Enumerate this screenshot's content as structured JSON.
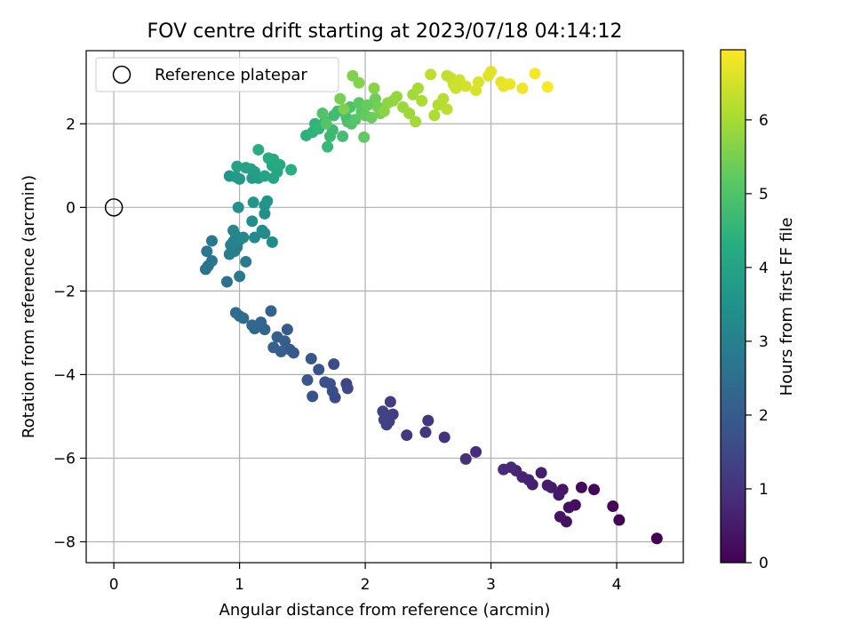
{
  "chart_data": {
    "type": "scatter",
    "title": "FOV centre drift starting at 2023/07/18 04:14:12",
    "xlabel": "Angular distance from reference (arcmin)",
    "ylabel": "Rotation from reference (arcmin)",
    "xlim": [
      -0.22,
      4.53
    ],
    "ylim": [
      -8.5,
      3.75
    ],
    "xticks": [
      0,
      1,
      2,
      3,
      4
    ],
    "yticks": [
      -8,
      -6,
      -4,
      -2,
      0,
      2
    ],
    "grid": true,
    "legend": {
      "position": "top-left",
      "entries": [
        "Reference platepar"
      ]
    },
    "reference_point": {
      "x": 0,
      "y": 0
    },
    "colorbar": {
      "label": "Hours from first FF file",
      "colormap": "viridis",
      "range": [
        0,
        6.95
      ],
      "ticks": [
        0,
        1,
        2,
        3,
        4,
        5,
        6
      ]
    },
    "points_columns": [
      "x",
      "y",
      "hours"
    ],
    "points": [
      [
        4.32,
        -7.92,
        0.0
      ],
      [
        4.02,
        -7.48,
        0.05
      ],
      [
        3.97,
        -7.15,
        0.1
      ],
      [
        3.82,
        -6.75,
        0.15
      ],
      [
        3.72,
        -6.7,
        0.2
      ],
      [
        3.67,
        -7.12,
        0.25
      ],
      [
        3.62,
        -7.18,
        0.3
      ],
      [
        3.6,
        -7.52,
        0.34
      ],
      [
        3.55,
        -7.4,
        0.38
      ],
      [
        3.57,
        -6.75,
        0.42
      ],
      [
        3.54,
        -6.88,
        0.46
      ],
      [
        3.48,
        -6.7,
        0.5
      ],
      [
        3.45,
        -6.65,
        0.54
      ],
      [
        3.4,
        -6.35,
        0.58
      ],
      [
        3.33,
        -6.63,
        0.62
      ],
      [
        3.3,
        -6.52,
        0.66
      ],
      [
        3.25,
        -6.45,
        0.7
      ],
      [
        3.2,
        -6.3,
        0.74
      ],
      [
        3.16,
        -6.22,
        0.78
      ],
      [
        3.1,
        -6.27,
        0.82
      ],
      [
        2.88,
        -5.85,
        0.88
      ],
      [
        2.8,
        -6.02,
        0.94
      ],
      [
        2.63,
        -5.5,
        1.0
      ],
      [
        2.5,
        -5.1,
        1.05
      ],
      [
        2.48,
        -5.38,
        1.1
      ],
      [
        2.33,
        -5.45,
        1.15
      ],
      [
        2.22,
        -4.95,
        1.2
      ],
      [
        2.2,
        -4.65,
        1.25
      ],
      [
        2.19,
        -5.12,
        1.28
      ],
      [
        2.18,
        -4.98,
        1.31
      ],
      [
        2.17,
        -5.2,
        1.34
      ],
      [
        2.15,
        -5.08,
        1.37
      ],
      [
        2.14,
        -4.88,
        1.4
      ],
      [
        1.85,
        -4.22,
        1.45
      ],
      [
        1.86,
        -4.33,
        1.5
      ],
      [
        1.76,
        -4.55,
        1.55
      ],
      [
        1.75,
        -3.75,
        1.6
      ],
      [
        1.74,
        -4.4,
        1.64
      ],
      [
        1.72,
        -4.22,
        1.68
      ],
      [
        1.68,
        -4.18,
        1.72
      ],
      [
        1.63,
        -3.88,
        1.76
      ],
      [
        1.58,
        -4.52,
        1.8
      ],
      [
        1.57,
        -3.62,
        1.84
      ],
      [
        1.54,
        -4.13,
        1.88
      ],
      [
        1.43,
        -3.48,
        1.92
      ],
      [
        1.4,
        -3.4,
        1.96
      ],
      [
        1.38,
        -2.92,
        2.0
      ],
      [
        1.36,
        -3.2,
        2.04
      ],
      [
        1.33,
        -3.45,
        2.08
      ],
      [
        1.3,
        -3.1,
        2.12
      ],
      [
        1.27,
        -3.35,
        2.16
      ],
      [
        1.25,
        -2.48,
        2.2
      ],
      [
        1.2,
        -2.92,
        2.24
      ],
      [
        1.17,
        -2.75,
        2.28
      ],
      [
        1.12,
        -2.9,
        2.32
      ],
      [
        1.1,
        -2.82,
        2.36
      ],
      [
        1.03,
        -2.65,
        2.4
      ],
      [
        1.0,
        -2.6,
        2.44
      ],
      [
        0.97,
        -2.52,
        2.48
      ],
      [
        0.9,
        -1.78,
        2.55
      ],
      [
        0.73,
        -1.48,
        2.6
      ],
      [
        0.75,
        -1.4,
        2.65
      ],
      [
        0.78,
        -1.28,
        2.7
      ],
      [
        0.74,
        -1.05,
        2.74
      ],
      [
        0.78,
        -0.8,
        2.78
      ],
      [
        1.0,
        -1.65,
        2.82
      ],
      [
        1.05,
        -1.3,
        2.86
      ],
      [
        0.92,
        -1.12,
        2.9
      ],
      [
        0.96,
        -1.05,
        2.94
      ],
      [
        0.98,
        -0.95,
        2.98
      ],
      [
        0.93,
        -0.9,
        3.02
      ],
      [
        0.95,
        -0.82,
        3.06
      ],
      [
        1.0,
        -0.78,
        3.1
      ],
      [
        0.97,
        -0.68,
        3.14
      ],
      [
        0.95,
        -0.55,
        3.18
      ],
      [
        1.03,
        -0.72,
        3.22
      ],
      [
        1.12,
        -0.72,
        3.26
      ],
      [
        1.2,
        -0.62,
        3.3
      ],
      [
        1.18,
        -0.55,
        3.34
      ],
      [
        1.26,
        -0.83,
        3.38
      ],
      [
        1.1,
        -0.33,
        3.42
      ],
      [
        1.2,
        -0.15,
        3.46
      ],
      [
        0.99,
        0.0,
        3.5
      ],
      [
        1.2,
        0.05,
        3.54
      ],
      [
        1.22,
        0.15,
        3.58
      ],
      [
        1.11,
        0.12,
        3.62
      ],
      [
        0.92,
        0.75,
        3.66
      ],
      [
        0.97,
        0.73,
        3.7
      ],
      [
        1.0,
        0.68,
        3.74
      ],
      [
        1.1,
        0.7,
        3.78
      ],
      [
        1.15,
        0.7,
        3.82
      ],
      [
        1.12,
        0.85,
        3.86
      ],
      [
        1.09,
        0.92,
        3.9
      ],
      [
        1.05,
        0.95,
        3.94
      ],
      [
        0.98,
        0.98,
        3.98
      ],
      [
        1.2,
        0.75,
        4.02
      ],
      [
        1.27,
        0.7,
        4.06
      ],
      [
        1.3,
        0.85,
        4.1
      ],
      [
        1.26,
        1.0,
        4.14
      ],
      [
        1.27,
        1.15,
        4.18
      ],
      [
        1.32,
        1.02,
        4.22
      ],
      [
        1.23,
        1.18,
        4.26
      ],
      [
        1.15,
        1.38,
        4.3
      ],
      [
        1.41,
        0.9,
        4.34
      ],
      [
        1.53,
        1.72,
        4.4
      ],
      [
        1.58,
        1.8,
        4.45
      ],
      [
        1.6,
        2.0,
        4.5
      ],
      [
        1.63,
        1.88,
        4.54
      ],
      [
        1.68,
        2.05,
        4.58
      ],
      [
        1.7,
        1.45,
        4.62
      ],
      [
        1.72,
        1.7,
        4.66
      ],
      [
        1.74,
        1.85,
        4.7
      ],
      [
        1.75,
        2.2,
        4.74
      ],
      [
        1.78,
        2.3,
        4.78
      ],
      [
        1.82,
        1.7,
        4.82
      ],
      [
        1.85,
        2.15,
        4.86
      ],
      [
        1.86,
        2.05,
        4.9
      ],
      [
        1.88,
        2.4,
        4.94
      ],
      [
        1.89,
        2.0,
        4.98
      ],
      [
        1.66,
        2.25,
        5.02
      ],
      [
        1.69,
        2.0,
        5.06
      ],
      [
        1.92,
        2.1,
        5.1
      ],
      [
        1.95,
        2.5,
        5.14
      ],
      [
        1.97,
        2.3,
        5.18
      ],
      [
        1.99,
        1.68,
        5.22
      ],
      [
        2.0,
        2.2,
        5.26
      ],
      [
        2.02,
        2.45,
        5.3
      ],
      [
        2.05,
        2.15,
        5.34
      ],
      [
        2.08,
        2.6,
        5.38
      ],
      [
        2.1,
        2.4,
        5.42
      ],
      [
        2.12,
        2.25,
        5.46
      ],
      [
        1.8,
        2.6,
        5.5
      ],
      [
        1.83,
        2.35,
        5.54
      ],
      [
        1.9,
        3.15,
        5.58
      ],
      [
        1.95,
        2.98,
        5.62
      ],
      [
        2.07,
        2.85,
        5.66
      ],
      [
        2.15,
        2.3,
        5.7
      ],
      [
        2.18,
        2.5,
        5.74
      ],
      [
        2.22,
        2.55,
        5.78
      ],
      [
        2.25,
        2.65,
        5.82
      ],
      [
        2.3,
        2.4,
        5.86
      ],
      [
        2.35,
        2.25,
        5.9
      ],
      [
        2.38,
        2.7,
        5.94
      ],
      [
        2.4,
        2.05,
        5.98
      ],
      [
        2.42,
        2.85,
        6.02
      ],
      [
        2.45,
        2.55,
        6.06
      ],
      [
        2.55,
        2.2,
        6.1
      ],
      [
        2.58,
        2.45,
        6.14
      ],
      [
        2.62,
        2.6,
        6.18
      ],
      [
        2.65,
        2.35,
        6.22
      ],
      [
        2.52,
        3.18,
        6.26
      ],
      [
        2.65,
        3.15,
        6.3
      ],
      [
        2.68,
        3.1,
        6.34
      ],
      [
        2.7,
        2.95,
        6.38
      ],
      [
        2.72,
        2.85,
        6.42
      ],
      [
        2.75,
        3.05,
        6.46
      ],
      [
        2.8,
        2.9,
        6.5
      ],
      [
        2.88,
        2.8,
        6.54
      ],
      [
        2.9,
        3.0,
        6.58
      ],
      [
        2.98,
        3.15,
        6.62
      ],
      [
        3.0,
        3.25,
        6.66
      ],
      [
        3.08,
        3.0,
        6.7
      ],
      [
        3.1,
        2.9,
        6.74
      ],
      [
        3.15,
        2.95,
        6.78
      ],
      [
        3.25,
        2.85,
        6.82
      ],
      [
        3.35,
        3.2,
        6.86
      ],
      [
        3.45,
        2.88,
        6.92
      ]
    ]
  }
}
